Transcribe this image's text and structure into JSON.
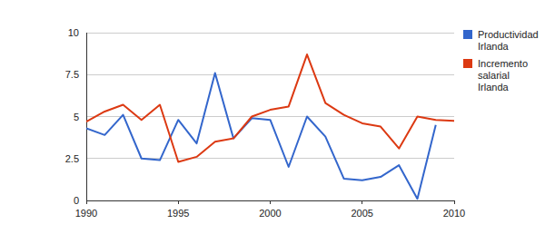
{
  "chart_data": {
    "type": "line",
    "x": [
      1990,
      1991,
      1992,
      1993,
      1994,
      1995,
      1996,
      1997,
      1998,
      1999,
      2000,
      2001,
      2002,
      2003,
      2004,
      2005,
      2006,
      2007,
      2008,
      2009,
      2010
    ],
    "series": [
      {
        "name": "Productividad Irlanda",
        "color": "#3366cc",
        "values": [
          4.3,
          3.9,
          5.1,
          2.5,
          2.4,
          4.8,
          3.4,
          7.6,
          3.7,
          4.9,
          4.8,
          2.0,
          5.0,
          3.8,
          1.3,
          1.2,
          1.4,
          2.1,
          0.1,
          4.5,
          null
        ]
      },
      {
        "name": "Incremento salarial Irlanda",
        "color": "#dc3912",
        "values": [
          4.7,
          5.3,
          5.7,
          4.8,
          5.7,
          2.3,
          2.6,
          3.5,
          3.7,
          5.0,
          5.4,
          5.6,
          8.7,
          5.8,
          5.1,
          4.6,
          4.4,
          3.1,
          5.0,
          4.8,
          4.75
        ]
      }
    ],
    "xlim": [
      1990,
      2010
    ],
    "xticks": [
      1990,
      1995,
      2000,
      2005,
      2010
    ],
    "ylim": [
      0,
      10
    ],
    "yticks": [
      0,
      {
        "value": 2.5,
        "label": "2.5"
      },
      5,
      {
        "value": 7.5,
        "label": "7.5"
      },
      10
    ],
    "grid": true,
    "legend": "right"
  }
}
